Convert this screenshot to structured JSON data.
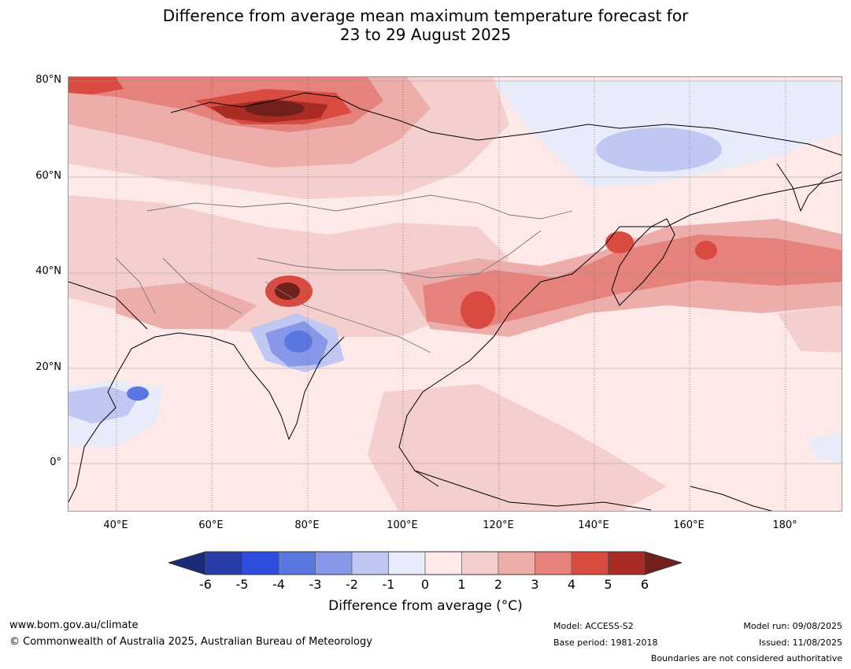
{
  "title_line1": "Difference from average mean maximum temperature forecast for",
  "title_line2": "23 to 29 August 2025",
  "lat_labels": [
    "80°N",
    "60°N",
    "40°N",
    "20°N",
    "0°"
  ],
  "lon_labels": [
    "40°E",
    "60°E",
    "80°E",
    "100°E",
    "120°E",
    "140°E",
    "160°E",
    "180°"
  ],
  "colorbar": {
    "ticks": [
      "-6",
      "-5",
      "-4",
      "-3",
      "-2",
      "-1",
      "0",
      "1",
      "2",
      "3",
      "4",
      "5",
      "6"
    ],
    "colors": [
      "#263da8",
      "#2f4ddd",
      "#5b77e2",
      "#8898e8",
      "#bfc7f2",
      "#e8ebfa",
      "#fce9e8",
      "#f5cfcd",
      "#edaeab",
      "#e6827c",
      "#d94a41",
      "#a92b24"
    ],
    "under_color": "#1a2b78",
    "over_color": "#72201c",
    "label": "Difference from average (°C)"
  },
  "footer": {
    "url": "www.bom.gov.au/climate",
    "copyright": "© Commonwealth of Australia 2025, Australian Bureau of Meteorology",
    "model": "Model: ACCESS-S2",
    "base_period": "Base period: 1981-2018",
    "model_run": "Model run: 09/08/2025",
    "issued": "Issued: 11/08/2025",
    "boundaries": "Boundaries are not considered authoritative"
  }
}
